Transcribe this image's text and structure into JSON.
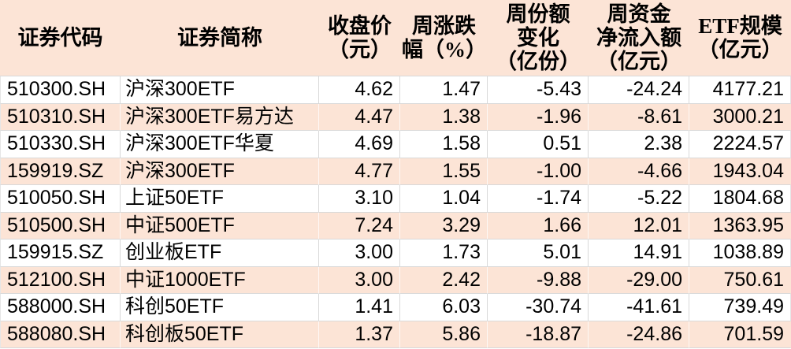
{
  "chart_data": {
    "type": "table",
    "title": "",
    "columns": [
      {
        "label": "证券代码",
        "align": "left"
      },
      {
        "label": "证券简称",
        "align": "left"
      },
      {
        "label": "收盘价\n（元）",
        "align": "right"
      },
      {
        "label": "周涨跌\n幅（%）",
        "align": "right"
      },
      {
        "label": "周份额\n变化\n（亿份）",
        "align": "right"
      },
      {
        "label": "周资金\n净流入额\n（亿元）",
        "align": "right"
      },
      {
        "label": "ETF规模\n（亿元）",
        "align": "right"
      }
    ],
    "rows": [
      [
        "510300.SH",
        "沪深300ETF",
        "4.62",
        "1.47",
        "-5.43",
        "-24.24",
        "4177.21"
      ],
      [
        "510310.SH",
        "沪深300ETF易方达",
        "4.47",
        "1.38",
        "-1.96",
        "-8.61",
        "3000.21"
      ],
      [
        "510330.SH",
        "沪深300ETF华夏",
        "4.69",
        "1.58",
        "0.51",
        "2.38",
        "2224.57"
      ],
      [
        "159919.SZ",
        "沪深300ETF",
        "4.77",
        "1.55",
        "-1.00",
        "-4.66",
        "1943.04"
      ],
      [
        "510050.SH",
        "上证50ETF",
        "3.10",
        "1.04",
        "-1.74",
        "-5.22",
        "1804.68"
      ],
      [
        "510500.SH",
        "中证500ETF",
        "7.24",
        "3.29",
        "1.66",
        "12.01",
        "1363.95"
      ],
      [
        "159915.SZ",
        "创业板ETF",
        "3.00",
        "1.73",
        "5.01",
        "14.91",
        "1038.89"
      ],
      [
        "512100.SH",
        "中证1000ETF",
        "3.00",
        "2.42",
        "-9.88",
        "-29.00",
        "750.61"
      ],
      [
        "588000.SH",
        "科创50ETF",
        "1.41",
        "6.03",
        "-30.74",
        "-41.61",
        "739.49"
      ],
      [
        "588080.SH",
        "科创板50ETF",
        "1.37",
        "5.86",
        "-18.87",
        "-24.86",
        "701.59"
      ]
    ],
    "layout": {
      "striped": true,
      "stripe_pattern": "even-rows-peach",
      "header_position": "top",
      "grid": true
    }
  },
  "colors": {
    "header_bg": "#fce4d6",
    "stripe_row_bg": "#fce4d6",
    "base_row_bg": "#ffffff",
    "grid_line": "#d9d9d9",
    "text": "#000000"
  }
}
